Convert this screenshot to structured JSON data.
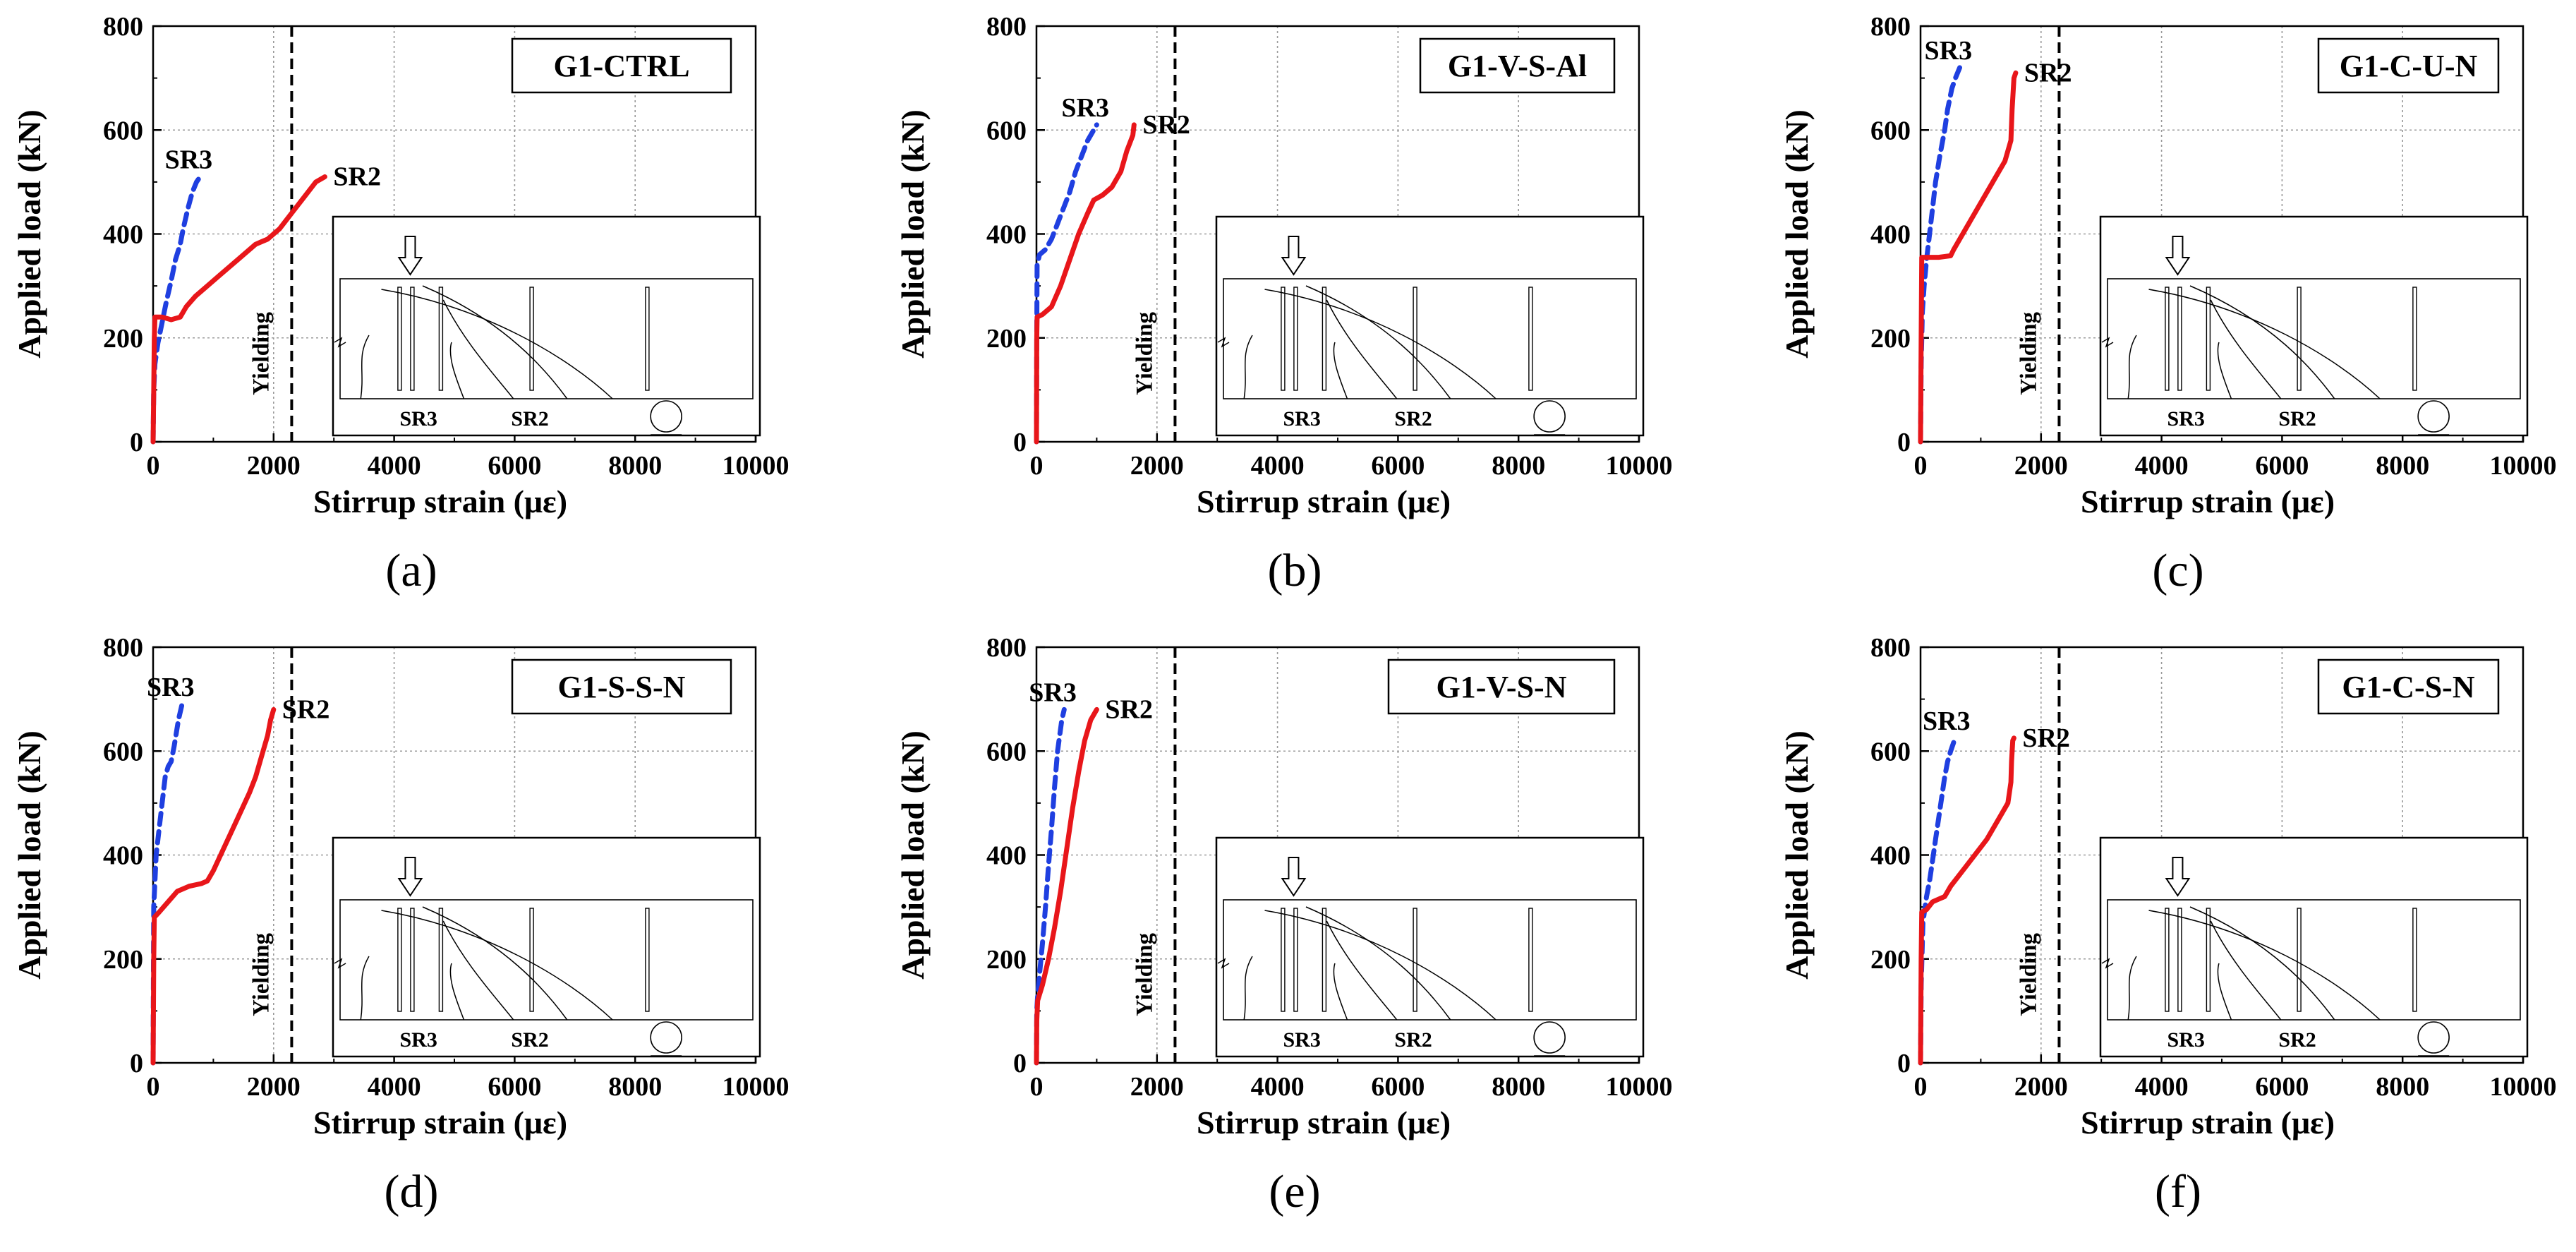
{
  "chart_data": [
    {
      "panel": "(a)",
      "type": "line",
      "title": "G1-CTRL",
      "xlabel": "Stirrup strain (με)",
      "ylabel": "Applied load (kN)",
      "xlim": [
        0,
        10000
      ],
      "ylim": [
        0,
        800
      ],
      "xticks": [
        "0",
        "2000",
        "4000",
        "6000",
        "8000",
        "10000"
      ],
      "yticks": [
        "0",
        "200",
        "400",
        "600",
        "800"
      ],
      "grid": true,
      "yield_line": {
        "x": 2300,
        "label": "Yielding"
      },
      "series": [
        {
          "name": "SR3",
          "style": "dashed",
          "color": "#1f3fe0",
          "points": [
            [
              0,
              0
            ],
            [
              10,
              100
            ],
            [
              30,
              150
            ],
            [
              80,
              190
            ],
            [
              150,
              230
            ],
            [
              220,
              270
            ],
            [
              300,
              310
            ],
            [
              370,
              350
            ],
            [
              450,
              380
            ],
            [
              500,
              410
            ],
            [
              580,
              450
            ],
            [
              650,
              480
            ],
            [
              720,
              500
            ],
            [
              780,
              510
            ]
          ]
        },
        {
          "name": "SR2",
          "style": "solid",
          "color": "#e8161a",
          "points": [
            [
              0,
              0
            ],
            [
              10,
              100
            ],
            [
              20,
              200
            ],
            [
              30,
              240
            ],
            [
              150,
              240
            ],
            [
              300,
              235
            ],
            [
              450,
              240
            ],
            [
              550,
              260
            ],
            [
              700,
              280
            ],
            [
              900,
              300
            ],
            [
              1100,
              320
            ],
            [
              1400,
              350
            ],
            [
              1700,
              380
            ],
            [
              1800,
              385
            ],
            [
              1900,
              390
            ],
            [
              2100,
              410
            ],
            [
              2300,
              440
            ],
            [
              2500,
              470
            ],
            [
              2700,
              500
            ],
            [
              2850,
              510
            ]
          ]
        }
      ],
      "inset": {
        "sensor_labels": [
          "SR3",
          "SR2"
        ]
      }
    },
    {
      "panel": "(b)",
      "type": "line",
      "title": "G1-V-S-Al",
      "xlabel": "Stirrup strain (με)",
      "ylabel": "Applied load (kN)",
      "xlim": [
        0,
        10000
      ],
      "ylim": [
        0,
        800
      ],
      "xticks": [
        "0",
        "2000",
        "4000",
        "6000",
        "8000",
        "10000"
      ],
      "yticks": [
        "0",
        "200",
        "400",
        "600",
        "800"
      ],
      "grid": true,
      "yield_line": {
        "x": 2300,
        "label": "Yielding"
      },
      "series": [
        {
          "name": "SR3",
          "style": "dashed",
          "color": "#1f3fe0",
          "points": [
            [
              0,
              0
            ],
            [
              5,
              200
            ],
            [
              10,
              340
            ],
            [
              50,
              360
            ],
            [
              150,
              370
            ],
            [
              250,
              390
            ],
            [
              350,
              420
            ],
            [
              450,
              450
            ],
            [
              550,
              480
            ],
            [
              650,
              520
            ],
            [
              750,
              550
            ],
            [
              850,
              580
            ],
            [
              950,
              600
            ],
            [
              1000,
              610
            ]
          ]
        },
        {
          "name": "SR2",
          "style": "solid",
          "color": "#e8161a",
          "points": [
            [
              0,
              0
            ],
            [
              5,
              200
            ],
            [
              10,
              240
            ],
            [
              100,
              245
            ],
            [
              250,
              260
            ],
            [
              400,
              300
            ],
            [
              550,
              350
            ],
            [
              700,
              400
            ],
            [
              850,
              440
            ],
            [
              950,
              465
            ],
            [
              1100,
              475
            ],
            [
              1250,
              490
            ],
            [
              1400,
              520
            ],
            [
              1500,
              560
            ],
            [
              1600,
              590
            ],
            [
              1620,
              610
            ]
          ]
        }
      ],
      "inset": {
        "sensor_labels": [
          "SR3",
          "SR2"
        ]
      }
    },
    {
      "panel": "(c)",
      "type": "line",
      "title": "G1-C-U-N",
      "xlabel": "Stirrup strain (με)",
      "ylabel": "Applied load (kN)",
      "xlim": [
        0,
        10000
      ],
      "ylim": [
        0,
        800
      ],
      "xticks": [
        "0",
        "2000",
        "4000",
        "6000",
        "8000",
        "10000"
      ],
      "yticks": [
        "0",
        "200",
        "400",
        "600",
        "800"
      ],
      "grid": true,
      "yield_line": {
        "x": 2300,
        "label": "Yielding"
      },
      "series": [
        {
          "name": "SR3",
          "style": "dashed",
          "color": "#1f3fe0",
          "points": [
            [
              0,
              0
            ],
            [
              10,
              150
            ],
            [
              30,
              250
            ],
            [
              60,
              300
            ],
            [
              100,
              350
            ],
            [
              150,
              400
            ],
            [
              200,
              450
            ],
            [
              250,
              500
            ],
            [
              320,
              550
            ],
            [
              400,
              600
            ],
            [
              450,
              640
            ],
            [
              520,
              680
            ],
            [
              580,
              700
            ],
            [
              650,
              720
            ]
          ]
        },
        {
          "name": "SR2",
          "style": "solid",
          "color": "#e8161a",
          "points": [
            [
              0,
              0
            ],
            [
              10,
              200
            ],
            [
              20,
              355
            ],
            [
              100,
              355
            ],
            [
              300,
              355
            ],
            [
              500,
              358
            ],
            [
              550,
              370
            ],
            [
              700,
              400
            ],
            [
              900,
              440
            ],
            [
              1100,
              480
            ],
            [
              1300,
              520
            ],
            [
              1400,
              540
            ],
            [
              1500,
              580
            ],
            [
              1520,
              640
            ],
            [
              1550,
              700
            ],
            [
              1580,
              710
            ]
          ]
        }
      ],
      "inset": {
        "sensor_labels": [
          "SR3",
          "SR2"
        ]
      }
    },
    {
      "panel": "(d)",
      "type": "line",
      "title": "G1-S-S-N",
      "xlabel": "Stirrup strain (με)",
      "ylabel": "Applied load (kN)",
      "xlim": [
        0,
        10000
      ],
      "ylim": [
        0,
        800
      ],
      "xticks": [
        "0",
        "2000",
        "4000",
        "6000",
        "8000",
        "10000"
      ],
      "yticks": [
        "0",
        "200",
        "400",
        "600",
        "800"
      ],
      "grid": true,
      "yield_line": {
        "x": 2300,
        "label": "Yielding"
      },
      "series": [
        {
          "name": "SR3",
          "style": "dashed",
          "color": "#1f3fe0",
          "points": [
            [
              0,
              0
            ],
            [
              5,
              150
            ],
            [
              10,
              300
            ],
            [
              50,
              400
            ],
            [
              100,
              450
            ],
            [
              150,
              500
            ],
            [
              200,
              550
            ],
            [
              250,
              570
            ],
            [
              300,
              580
            ],
            [
              350,
              610
            ],
            [
              420,
              660
            ],
            [
              480,
              690
            ]
          ]
        },
        {
          "name": "SR2",
          "style": "solid",
          "color": "#e8161a",
          "points": [
            [
              0,
              0
            ],
            [
              10,
              200
            ],
            [
              20,
              280
            ],
            [
              100,
              290
            ],
            [
              250,
              310
            ],
            [
              400,
              330
            ],
            [
              600,
              340
            ],
            [
              800,
              345
            ],
            [
              900,
              350
            ],
            [
              1000,
              370
            ],
            [
              1200,
              420
            ],
            [
              1400,
              470
            ],
            [
              1600,
              520
            ],
            [
              1700,
              550
            ],
            [
              1800,
              590
            ],
            [
              1900,
              630
            ],
            [
              1950,
              660
            ],
            [
              2000,
              680
            ]
          ]
        }
      ],
      "inset": {
        "sensor_labels": [
          "SR3",
          "SR2"
        ]
      }
    },
    {
      "panel": "(e)",
      "type": "line",
      "title": "G1-V-S-N",
      "xlabel": "Stirrup strain (με)",
      "ylabel": "Applied load (kN)",
      "xlim": [
        0,
        10000
      ],
      "ylim": [
        0,
        800
      ],
      "xticks": [
        "0",
        "2000",
        "4000",
        "6000",
        "8000",
        "10000"
      ],
      "yticks": [
        "0",
        "200",
        "400",
        "600",
        "800"
      ],
      "grid": true,
      "yield_line": {
        "x": 2300,
        "label": "Yielding"
      },
      "series": [
        {
          "name": "SR3",
          "style": "dashed",
          "color": "#1f3fe0",
          "points": [
            [
              0,
              0
            ],
            [
              5,
              100
            ],
            [
              20,
              130
            ],
            [
              50,
              170
            ],
            [
              100,
              230
            ],
            [
              150,
              300
            ],
            [
              200,
              380
            ],
            [
              250,
              450
            ],
            [
              300,
              530
            ],
            [
              350,
              600
            ],
            [
              420,
              660
            ],
            [
              460,
              680
            ]
          ]
        },
        {
          "name": "SR2",
          "style": "solid",
          "color": "#e8161a",
          "points": [
            [
              0,
              0
            ],
            [
              5,
              80
            ],
            [
              20,
              120
            ],
            [
              100,
              150
            ],
            [
              200,
              200
            ],
            [
              300,
              260
            ],
            [
              400,
              330
            ],
            [
              500,
              410
            ],
            [
              600,
              490
            ],
            [
              700,
              560
            ],
            [
              750,
              590
            ],
            [
              800,
              620
            ],
            [
              850,
              640
            ],
            [
              900,
              660
            ],
            [
              1000,
              680
            ]
          ]
        }
      ],
      "inset": {
        "sensor_labels": [
          "SR3",
          "SR2"
        ]
      }
    },
    {
      "panel": "(f)",
      "type": "line",
      "title": "G1-C-S-N",
      "xlabel": "Stirrup strain (με)",
      "ylabel": "Applied load (kN)",
      "xlim": [
        0,
        10000
      ],
      "ylim": [
        0,
        800
      ],
      "xticks": [
        "0",
        "2000",
        "4000",
        "6000",
        "8000",
        "10000"
      ],
      "yticks": [
        "0",
        "200",
        "400",
        "600",
        "800"
      ],
      "grid": true,
      "yield_line": {
        "x": 2300,
        "label": "Yielding"
      },
      "series": [
        {
          "name": "SR3",
          "style": "dashed",
          "color": "#1f3fe0",
          "points": [
            [
              0,
              0
            ],
            [
              10,
              150
            ],
            [
              40,
              270
            ],
            [
              100,
              320
            ],
            [
              150,
              350
            ],
            [
              200,
              390
            ],
            [
              250,
              430
            ],
            [
              300,
              470
            ],
            [
              350,
              510
            ],
            [
              400,
              550
            ],
            [
              450,
              580
            ],
            [
              500,
              600
            ],
            [
              560,
              620
            ],
            [
              620,
              625
            ]
          ]
        },
        {
          "name": "SR2",
          "style": "solid",
          "color": "#e8161a",
          "points": [
            [
              0,
              0
            ],
            [
              10,
              200
            ],
            [
              20,
              290
            ],
            [
              100,
              295
            ],
            [
              200,
              310
            ],
            [
              300,
              315
            ],
            [
              400,
              320
            ],
            [
              500,
              340
            ],
            [
              700,
              370
            ],
            [
              900,
              400
            ],
            [
              1100,
              430
            ],
            [
              1300,
              470
            ],
            [
              1450,
              500
            ],
            [
              1500,
              540
            ],
            [
              1510,
              580
            ],
            [
              1530,
              620
            ],
            [
              1550,
              625
            ]
          ]
        }
      ],
      "inset": {
        "sensor_labels": [
          "SR3",
          "SR2"
        ]
      }
    }
  ]
}
